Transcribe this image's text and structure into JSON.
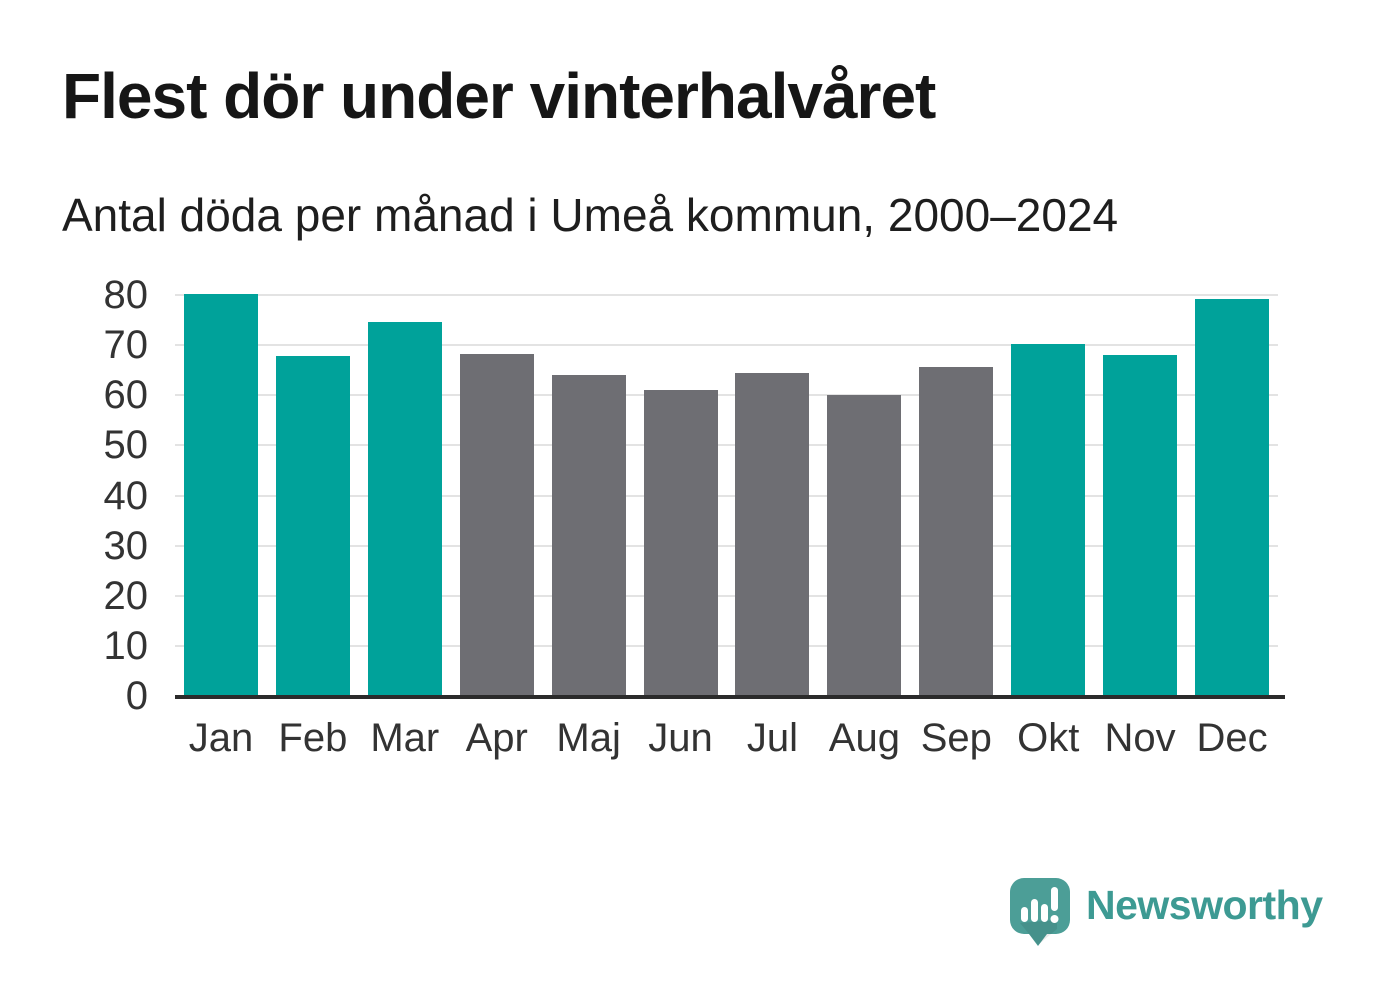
{
  "header": {
    "title": "Flest dör under vinterhalvåret",
    "subtitle": "Antal döda per månad i Umeå kommun, 2000–2024"
  },
  "chart_data": {
    "type": "bar",
    "title": "Flest dör under vinterhalvåret",
    "subtitle": "Antal döda per månad i Umeå kommun, 2000–2024",
    "categories": [
      "Jan",
      "Feb",
      "Mar",
      "Apr",
      "Maj",
      "Jun",
      "Jul",
      "Aug",
      "Sep",
      "Okt",
      "Nov",
      "Dec"
    ],
    "values": [
      80.2,
      67.9,
      74.7,
      68.3,
      64.1,
      61.1,
      64.5,
      60.0,
      65.7,
      70.3,
      68.1,
      79.2
    ],
    "highlighted": [
      true,
      true,
      true,
      false,
      false,
      false,
      false,
      false,
      false,
      true,
      true,
      true
    ],
    "xlabel": "",
    "ylabel": "",
    "ylim": [
      0,
      80
    ],
    "yticks": [
      0,
      10,
      20,
      30,
      40,
      50,
      60,
      70,
      80
    ],
    "grid": "horizontal",
    "legend": "none",
    "colors": {
      "highlight": "#00A29A",
      "base": "#6E6E73",
      "gridline": "#E3E3E3",
      "axis_line": "#2B2B2B",
      "tick_text": "#333333"
    }
  },
  "footer": {
    "brand": "Newsworthy",
    "brand_color": "#3D9A93",
    "logo_bubble_color": "#4C9E97",
    "logo_icon": "speech-bubble-bar-chart-exclamation"
  }
}
